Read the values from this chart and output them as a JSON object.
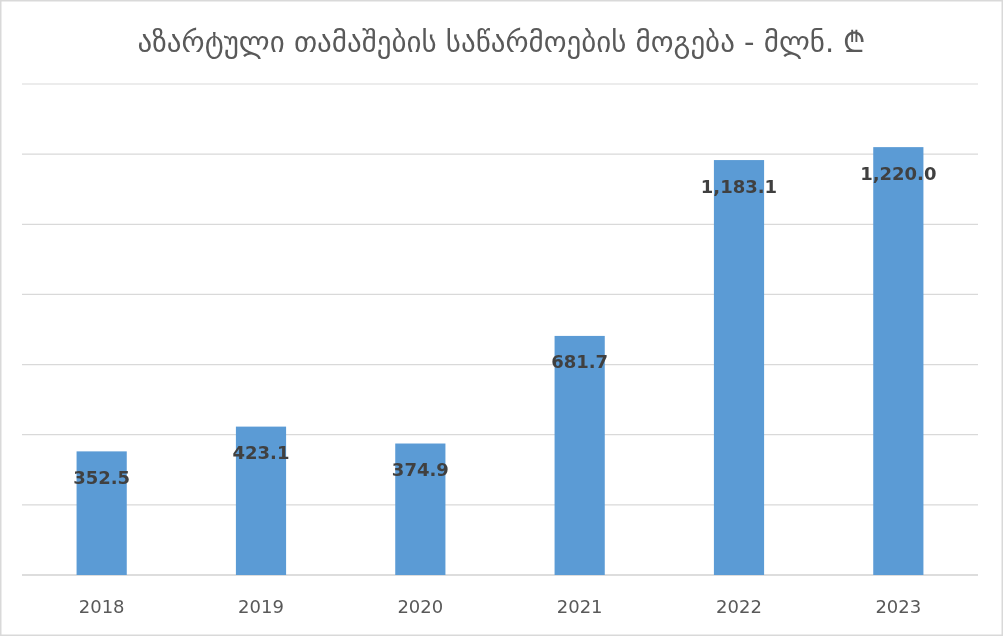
{
  "chart_data": {
    "type": "bar",
    "title": "აზარტული თამაშების საწარმოების მოგება - მლნ. ₾",
    "categories": [
      "2018",
      "2019",
      "2020",
      "2021",
      "2022",
      "2023"
    ],
    "values": [
      352.5,
      423.1,
      374.9,
      681.7,
      1183.1,
      1220.0
    ],
    "color": "#5b9bd5",
    "value_labels": [
      "352.5",
      "423.1",
      "374.9",
      "681.7",
      "1,183.1",
      "1,220.0"
    ],
    "ylim": [
      0,
      1400
    ],
    "yticks": [
      {
        "value": 0,
        "label": null
      },
      {
        "value": 200,
        "label": null
      },
      {
        "value": 400,
        "label": null
      },
      {
        "value": 600,
        "label": null
      },
      {
        "value": 800,
        "label": null
      },
      {
        "value": 1000,
        "label": null
      },
      {
        "value": 1200,
        "label": null
      },
      {
        "value": 1400,
        "label": null
      }
    ],
    "grid": "y",
    "tick_labels": "x"
  }
}
